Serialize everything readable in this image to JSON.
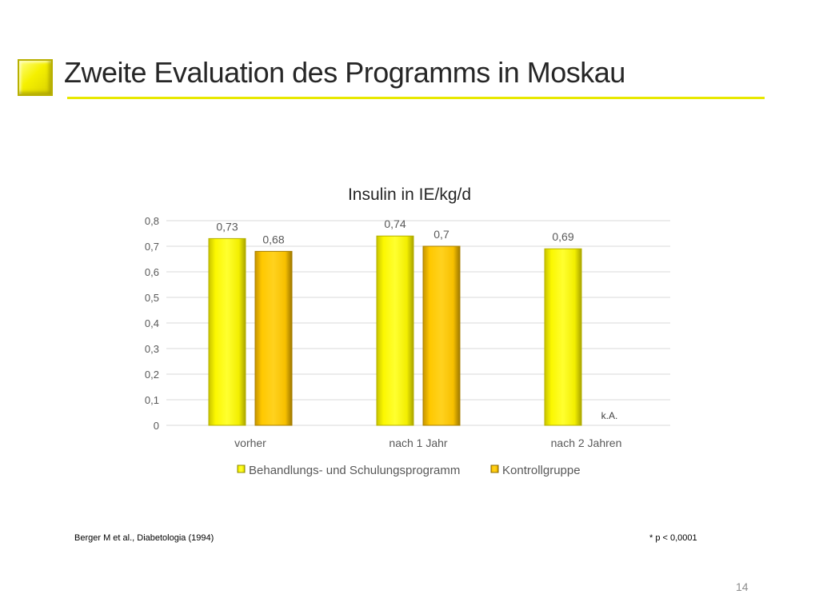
{
  "slide": {
    "title": "Zweite Evaluation des Programms in Moskau",
    "footer_left": "Berger M et al., Diabetologia (1994)",
    "footer_right": "* p < 0,0001",
    "page_number": "14",
    "accent_color": "#f0f000"
  },
  "chart_data": {
    "type": "bar",
    "title": "Insulin in IE/kg/d",
    "xlabel": "",
    "ylabel": "",
    "categories": [
      "vorher",
      "nach 1 Jahr",
      "nach 2 Jahren"
    ],
    "series": [
      {
        "name": "Behandlungs- und Schulungsprogramm",
        "values": [
          0.73,
          0.74,
          0.69
        ],
        "labels": [
          "0,73",
          "0,74",
          "0,69"
        ],
        "color": "#f5f000"
      },
      {
        "name": "Kontrollgruppe",
        "values": [
          0.68,
          0.7,
          null
        ],
        "labels": [
          "0,68",
          "0,7",
          "k.A."
        ],
        "color": "#ffc600"
      }
    ],
    "ylim": [
      0,
      0.8
    ],
    "yticks": [
      0,
      0.1,
      0.2,
      0.3,
      0.4,
      0.5,
      0.6,
      0.7,
      0.8
    ],
    "ytick_labels": [
      "0",
      "0,1",
      "0,2",
      "0,3",
      "0,4",
      "0,5",
      "0,6",
      "0,7",
      "0,8"
    ],
    "grid": true,
    "legend_position": "bottom"
  }
}
